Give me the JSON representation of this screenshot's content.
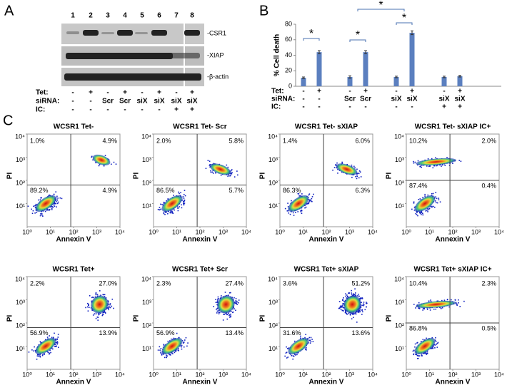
{
  "panel_labels": [
    "A",
    "B",
    "C"
  ],
  "blot": {
    "lanes": [
      "1",
      "2",
      "3",
      "4",
      "5",
      "6",
      "7",
      "8"
    ],
    "bands": [
      "-CSR1",
      "-XIAP",
      "-β-actin"
    ],
    "conditions": [
      {
        "label": "Tet:",
        "values": [
          "-",
          "+",
          "-",
          "+",
          "-",
          "+",
          "-",
          "+"
        ]
      },
      {
        "label": "siRNA:",
        "values": [
          "-",
          "-",
          "Scr",
          "Scr",
          "siX",
          "siX",
          "siX",
          "siX"
        ]
      },
      {
        "label": "IC:",
        "values": [
          "-",
          "-",
          "-",
          "-",
          "-",
          "-",
          "+",
          "+"
        ]
      }
    ]
  },
  "chart_data": {
    "type": "bar",
    "ylabel": "% Cell death",
    "values": [
      11,
      44,
      12,
      44,
      12,
      69,
      12,
      13
    ],
    "errors": [
      1,
      2,
      1.5,
      2,
      1,
      2.5,
      1,
      1
    ],
    "color": "#5b7fbf",
    "ylim": [
      0,
      80
    ],
    "yticks": [
      0,
      20,
      40,
      60,
      80
    ],
    "conditions": [
      {
        "label": "Tet:",
        "values": [
          "-",
          "+",
          "-",
          "+",
          "-",
          "+",
          "-",
          "+"
        ]
      },
      {
        "label": "siRNA:",
        "values": [
          "-",
          "-",
          "Scr",
          "Scr",
          "siX",
          "siX",
          "siX",
          "siX"
        ]
      },
      {
        "label": "IC:",
        "values": [
          "-",
          "-",
          "-",
          "-",
          "-",
          "-",
          "+",
          "+"
        ]
      }
    ],
    "significance": [
      "*",
      "*",
      "*",
      "*"
    ]
  },
  "flow": {
    "xlabel": "Annexin V",
    "ylabel": "PI",
    "xlim": [
      1,
      10000
    ],
    "ylim": [
      1,
      10000
    ],
    "xticks": [
      {
        "value": 1,
        "label": "10⁰"
      },
      {
        "value": 10,
        "label": "10¹"
      },
      {
        "value": 100,
        "label": "10²"
      },
      {
        "value": 1000,
        "label": "10³"
      },
      {
        "value": 10000,
        "label": "10⁴"
      }
    ],
    "yticks": [
      {
        "value": 10,
        "label": "10¹"
      },
      {
        "value": 100,
        "label": "10²"
      },
      {
        "value": 1000,
        "label": "10³"
      },
      {
        "value": 10000,
        "label": "10⁴"
      }
    ],
    "plots": [
      {
        "title": "WCSR1 Tet-",
        "quadrants": [
          "1.0%",
          "4.9%",
          "89.2%",
          "4.9%"
        ]
      },
      {
        "title": "WCSR1 Tet- Scr",
        "quadrants": [
          "2.0%",
          "5.8%",
          "86.5%",
          "5.7%"
        ]
      },
      {
        "title": "WCSR1 Tet- sXIAP",
        "quadrants": [
          "1.4%",
          "6.0%",
          "86.3%",
          "6.3%"
        ]
      },
      {
        "title": "WCSR1 Tet- sXIAP IC+",
        "quadrants": [
          "10.2%",
          "2.0%",
          "87.4%",
          "0.4%"
        ]
      },
      {
        "title": "WCSR1 Tet+",
        "quadrants": [
          "2.2%",
          "27.0%",
          "56.9%",
          "13.9%"
        ]
      },
      {
        "title": "WCSR1 Tet+ Scr",
        "quadrants": [
          "2.3%",
          "27.4%",
          "56.9%",
          "13.4%"
        ]
      },
      {
        "title": "WCSR1 Tet+ sXIAP",
        "quadrants": [
          "3.6%",
          "51.2%",
          "31.6%",
          "13.6%"
        ]
      },
      {
        "title": "WCSR1 Tet+ sXIAP IC+",
        "quadrants": [
          "10.4%",
          "2.3%",
          "86.8%",
          "0.5%"
        ]
      }
    ]
  }
}
